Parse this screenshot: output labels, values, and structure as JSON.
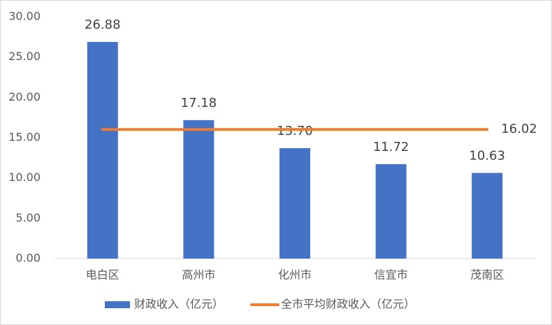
{
  "chart_data": {
    "type": "bar",
    "categories": [
      "电白区",
      "高州市",
      "化州市",
      "信宜市",
      "茂南区"
    ],
    "series": [
      {
        "name": "财政收入（亿元）",
        "type": "bar",
        "color": "#4472c4",
        "values": [
          26.88,
          17.18,
          13.7,
          11.72,
          10.63
        ],
        "value_labels": [
          "26.88",
          "17.18",
          "13.70",
          "11.72",
          "10.63"
        ]
      },
      {
        "name": "全市平均财政收入（亿元）",
        "type": "line",
        "color": "#ed7d31",
        "values": [
          16.02,
          16.02,
          16.02,
          16.02,
          16.02
        ]
      }
    ],
    "ylim": [
      0,
      30
    ],
    "yticks": [
      {
        "value": 0,
        "label": "0.00"
      },
      {
        "value": 5,
        "label": "5.00"
      },
      {
        "value": 10,
        "label": "10.00"
      },
      {
        "value": 15,
        "label": "15.00"
      },
      {
        "value": 20,
        "label": "20.00"
      },
      {
        "value": 25,
        "label": "25.00"
      },
      {
        "value": 30,
        "label": "30.00"
      }
    ],
    "grid": false,
    "legend": "bottom"
  }
}
